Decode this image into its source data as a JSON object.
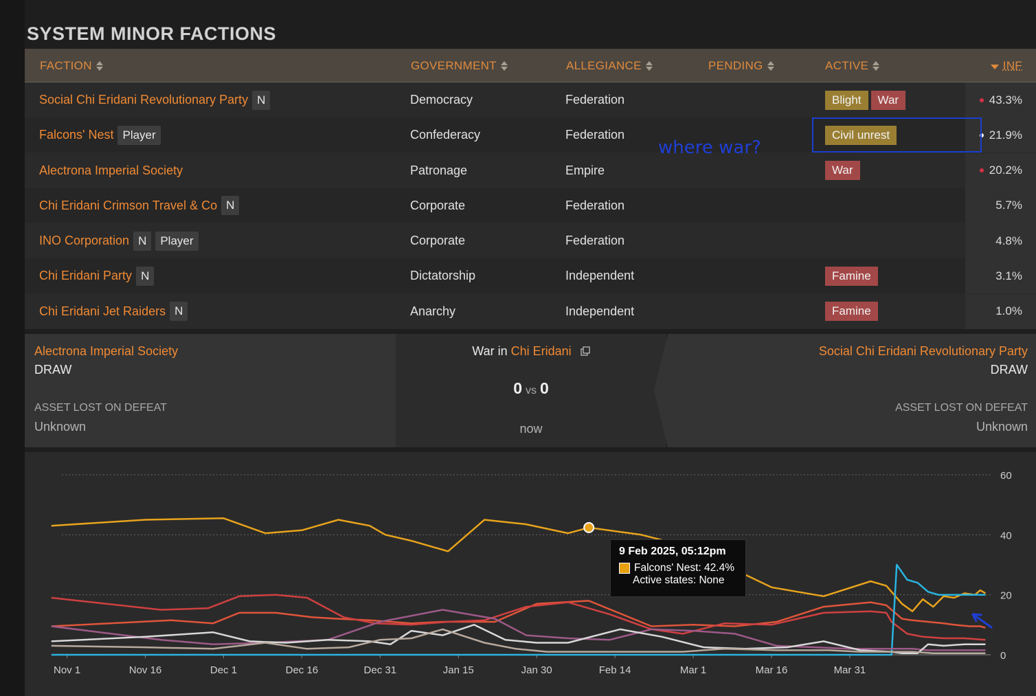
{
  "section_title": "SYSTEM MINOR FACTIONS",
  "table": {
    "headers": {
      "faction": "FACTION",
      "government": "GOVERNMENT",
      "allegiance": "ALLEGIANCE",
      "pending": "PENDING",
      "active": "ACTIVE",
      "inf": "INF"
    },
    "rows": [
      {
        "name": "Social Chi Eridani Revolutionary Party",
        "tags": [
          "N"
        ],
        "government": "Democracy",
        "allegiance": "Federation",
        "active": [
          {
            "label": "Blight",
            "color": "#9a7f33"
          },
          {
            "label": "War",
            "color": "#a34848"
          }
        ],
        "inf": "43.3%",
        "dot": "#d6314a"
      },
      {
        "name": "Falcons' Nest",
        "tags": [
          "Player"
        ],
        "government": "Confederacy",
        "allegiance": "Federation",
        "active": [
          {
            "label": "Civil unrest",
            "color": "#9a7f33"
          }
        ],
        "inf": "21.9%",
        "dot": "#f0f0f0"
      },
      {
        "name": "Alectrona Imperial Society",
        "tags": [],
        "government": "Patronage",
        "allegiance": "Empire",
        "active": [
          {
            "label": "War",
            "color": "#a34848"
          }
        ],
        "inf": "20.2%",
        "dot": "#d6314a"
      },
      {
        "name": "Chi Eridani Crimson Travel & Co",
        "tags": [
          "N"
        ],
        "government": "Corporate",
        "allegiance": "Federation",
        "active": [],
        "inf": "5.7%",
        "dot": ""
      },
      {
        "name": "INO Corporation",
        "tags": [
          "N",
          "Player"
        ],
        "government": "Corporate",
        "allegiance": "Federation",
        "active": [],
        "inf": "4.8%",
        "dot": ""
      },
      {
        "name": "Chi Eridani Party",
        "tags": [
          "N"
        ],
        "government": "Dictatorship",
        "allegiance": "Independent",
        "active": [
          {
            "label": "Famine",
            "color": "#a34848"
          }
        ],
        "inf": "3.1%",
        "dot": ""
      },
      {
        "name": "Chi Eridani Jet Raiders",
        "tags": [
          "N"
        ],
        "government": "Anarchy",
        "allegiance": "Independent",
        "active": [
          {
            "label": "Famine",
            "color": "#a34848"
          }
        ],
        "inf": "1.0%",
        "dot": ""
      }
    ]
  },
  "annotation": {
    "text": "where war?",
    "color": "#1f3fd6"
  },
  "war": {
    "left": {
      "faction": "Alectrona Imperial Society",
      "status": "DRAW",
      "asset_label": "ASSET LOST ON DEFEAT",
      "asset_value": "Unknown"
    },
    "center": {
      "prefix": "War in",
      "system": "Chi Eridani",
      "score_left": "0",
      "vs": "vs",
      "score_right": "0",
      "time": "now"
    },
    "right": {
      "faction": "Social Chi Eridani Revolutionary Party",
      "status": "DRAW",
      "asset_label": "ASSET LOST ON DEFEAT",
      "asset_value": "Unknown"
    }
  },
  "tooltip": {
    "title": "9 Feb 2025, 05:12pm",
    "line1": "Falcons' Nest: 42.4%",
    "line2": "Active states: None"
  },
  "chart_data": {
    "type": "line",
    "x_ticks": [
      "Nov 1",
      "Nov 16",
      "Dec 1",
      "Dec 16",
      "Dec 31",
      "Jan 15",
      "Jan 30",
      "Feb 14",
      "Mar 1",
      "Mar 16",
      "Mar 31"
    ],
    "y_ticks": [
      0,
      20,
      40,
      60
    ],
    "ylim": [
      0,
      60
    ],
    "grid": true,
    "x_index_range": [
      -1,
      154
    ],
    "series": [
      {
        "color": "#e8a31c",
        "points": [
          [
            -3,
            43
          ],
          [
            15,
            45
          ],
          [
            30,
            45.5
          ],
          [
            38,
            40.5
          ],
          [
            45,
            41.5
          ],
          [
            52,
            45
          ],
          [
            58,
            43
          ],
          [
            61,
            40
          ],
          [
            66,
            38
          ],
          [
            73,
            34.5
          ],
          [
            80,
            45
          ],
          [
            88,
            43.5
          ],
          [
            96,
            40.5
          ],
          [
            100,
            42.4
          ],
          [
            110,
            40
          ],
          [
            118,
            36.5
          ],
          [
            126,
            30
          ],
          [
            135,
            22.5
          ],
          [
            145,
            19.5
          ],
          [
            154,
            24.5
          ],
          [
            157,
            23
          ],
          [
            158,
            21
          ],
          [
            160,
            17
          ],
          [
            162,
            14.5
          ],
          [
            164,
            18.5
          ],
          [
            166,
            16
          ],
          [
            168,
            19.5
          ],
          [
            170,
            19
          ],
          [
            172,
            20.5
          ],
          [
            174,
            20
          ],
          [
            175,
            21.5
          ],
          [
            176,
            20.5
          ]
        ]
      },
      {
        "color": "#e0553a",
        "points": [
          [
            -3,
            9.5
          ],
          [
            20,
            11.5
          ],
          [
            28,
            10.5
          ],
          [
            33,
            14
          ],
          [
            40,
            14
          ],
          [
            47,
            12.5
          ],
          [
            52,
            12
          ],
          [
            58,
            11.5
          ],
          [
            66,
            10.5
          ],
          [
            72,
            11
          ],
          [
            82,
            11
          ],
          [
            90,
            17
          ],
          [
            100,
            18
          ],
          [
            112,
            9.5
          ],
          [
            120,
            10
          ],
          [
            128,
            9.5
          ],
          [
            136,
            11
          ],
          [
            145,
            16
          ],
          [
            154,
            17.5
          ],
          [
            157,
            16.5
          ],
          [
            160,
            12
          ],
          [
            162,
            11.5
          ],
          [
            165,
            11
          ],
          [
            168,
            10.5
          ],
          [
            170,
            10
          ],
          [
            173,
            9.5
          ],
          [
            175,
            9.5
          ],
          [
            176,
            9
          ]
        ]
      },
      {
        "color": "#d04040",
        "points": [
          [
            -3,
            19
          ],
          [
            18,
            15
          ],
          [
            27,
            15.5
          ],
          [
            33,
            19.5
          ],
          [
            40,
            20
          ],
          [
            46,
            19
          ],
          [
            53,
            12.5
          ],
          [
            59,
            10.5
          ],
          [
            66,
            10
          ],
          [
            73,
            11
          ],
          [
            80,
            11.5
          ],
          [
            88,
            16
          ],
          [
            96,
            17.5
          ],
          [
            104,
            13.5
          ],
          [
            112,
            8.5
          ],
          [
            118,
            7
          ],
          [
            126,
            10.5
          ],
          [
            135,
            10
          ],
          [
            145,
            14
          ],
          [
            154,
            14.5
          ],
          [
            157,
            14
          ],
          [
            158,
            11
          ],
          [
            161,
            7
          ],
          [
            164,
            6
          ],
          [
            168,
            5.5
          ],
          [
            172,
            5.5
          ],
          [
            176,
            5
          ]
        ]
      },
      {
        "color": "#2ab4e0",
        "points": [
          [
            -3,
            0
          ],
          [
            154,
            0
          ],
          [
            158,
            0
          ],
          [
            159,
            30
          ],
          [
            161,
            25
          ],
          [
            163,
            24
          ],
          [
            165,
            21
          ],
          [
            167,
            20
          ],
          [
            170,
            20
          ],
          [
            173,
            20
          ],
          [
            176,
            20
          ]
        ]
      },
      {
        "color": "#9d5a88",
        "points": [
          [
            -3,
            9.5
          ],
          [
            18,
            5
          ],
          [
            28,
            3.5
          ],
          [
            38,
            4
          ],
          [
            50,
            5
          ],
          [
            60,
            11
          ],
          [
            72,
            15
          ],
          [
            82,
            12
          ],
          [
            88,
            6.5
          ],
          [
            96,
            5.5
          ],
          [
            104,
            5
          ],
          [
            112,
            8.5
          ],
          [
            120,
            8
          ],
          [
            128,
            7
          ],
          [
            136,
            3
          ],
          [
            150,
            2
          ],
          [
            158,
            2
          ],
          [
            162,
            2
          ],
          [
            165,
            1.5
          ],
          [
            170,
            1.5
          ],
          [
            176,
            1.5
          ]
        ]
      },
      {
        "color": "#d8d8d8",
        "points": [
          [
            -3,
            4.5
          ],
          [
            15,
            6
          ],
          [
            28,
            7.5
          ],
          [
            35,
            4.5
          ],
          [
            42,
            4
          ],
          [
            50,
            5
          ],
          [
            58,
            4.5
          ],
          [
            62,
            3.5
          ],
          [
            66,
            8
          ],
          [
            72,
            6.5
          ],
          [
            78,
            10
          ],
          [
            84,
            5
          ],
          [
            90,
            4
          ],
          [
            96,
            4
          ],
          [
            106,
            8.5
          ],
          [
            114,
            6
          ],
          [
            122,
            2.5
          ],
          [
            130,
            2
          ],
          [
            138,
            2.5
          ],
          [
            145,
            4.5
          ],
          [
            152,
            1.5
          ],
          [
            158,
            1
          ],
          [
            160,
            0.5
          ],
          [
            163,
            0.5
          ],
          [
            165,
            3.5
          ],
          [
            168,
            3
          ],
          [
            172,
            3.5
          ],
          [
            176,
            3.5
          ]
        ]
      },
      {
        "color": "#b8a99e",
        "points": [
          [
            -3,
            3
          ],
          [
            15,
            2.5
          ],
          [
            28,
            2
          ],
          [
            38,
            4
          ],
          [
            46,
            2
          ],
          [
            54,
            2.5
          ],
          [
            60,
            5
          ],
          [
            66,
            5.5
          ],
          [
            72,
            8.5
          ],
          [
            80,
            4
          ],
          [
            86,
            2
          ],
          [
            92,
            1
          ],
          [
            100,
            1
          ],
          [
            110,
            1
          ],
          [
            118,
            1
          ],
          [
            126,
            2
          ],
          [
            136,
            1.5
          ],
          [
            146,
            1.5
          ],
          [
            152,
            1
          ],
          [
            158,
            1
          ],
          [
            162,
            1
          ],
          [
            166,
            0.5
          ],
          [
            176,
            0.5
          ]
        ]
      }
    ],
    "highlight": {
      "x": 100,
      "y": 42.4,
      "color": "#e8a31c"
    }
  }
}
